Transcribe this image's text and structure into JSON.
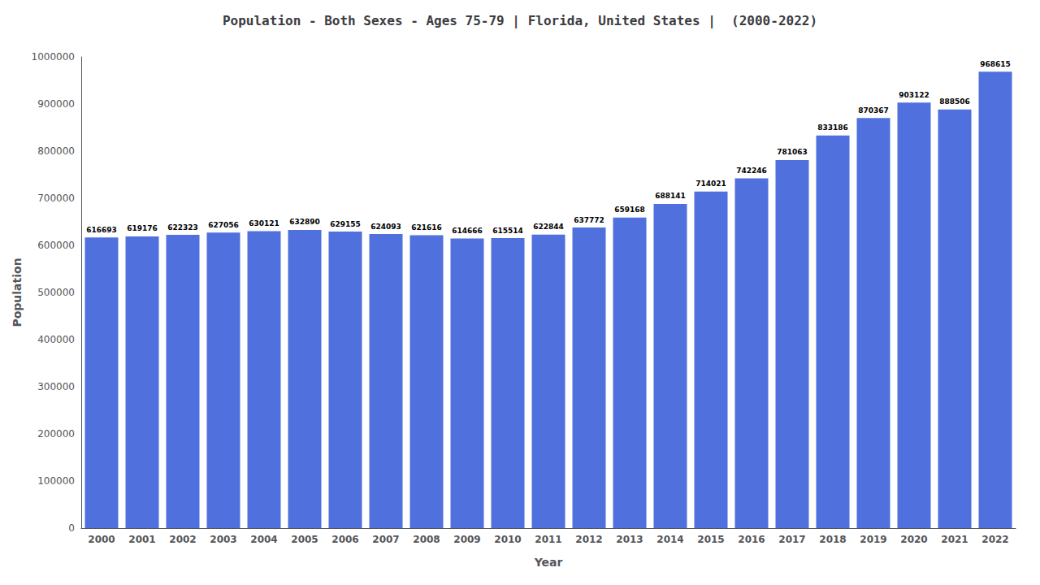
{
  "chart_data": {
    "type": "bar",
    "title": "Population - Both Sexes - Ages 75-79 | Florida, United States |  (2000-2022)",
    "xlabel": "Year",
    "ylabel": "Population",
    "categories": [
      "2000",
      "2001",
      "2002",
      "2003",
      "2004",
      "2005",
      "2006",
      "2007",
      "2008",
      "2009",
      "2010",
      "2011",
      "2012",
      "2013",
      "2014",
      "2015",
      "2016",
      "2017",
      "2018",
      "2019",
      "2020",
      "2021",
      "2022"
    ],
    "values": [
      616693,
      619176,
      622323,
      627056,
      630121,
      632890,
      629155,
      624093,
      621616,
      614666,
      615514,
      622844,
      637772,
      659168,
      688141,
      714021,
      742246,
      781063,
      833186,
      870367,
      903122,
      888506,
      968615
    ],
    "ylim": [
      0,
      1000000
    ],
    "yticks": [
      0,
      100000,
      200000,
      300000,
      400000,
      500000,
      600000,
      700000,
      800000,
      900000,
      1000000
    ],
    "grid": false,
    "data_labels": true
  }
}
